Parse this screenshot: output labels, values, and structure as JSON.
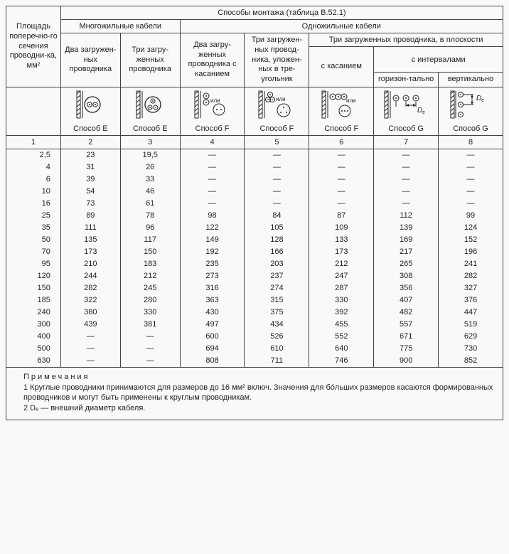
{
  "header": {
    "top": "Способы монтажа (таблица В.52.1)",
    "multi": "Многожильные кабели",
    "single": "Одножильные кабели",
    "sec_label": "Площадь поперечно-го сечения проводни-ка, мм²",
    "col2": "Два загружен-ных проводника",
    "col3": "Три загру-женных проводника",
    "col4": "Два загру-женных проводника с касанием",
    "col5": "Три загружен-ных провод-ника, уложен-ных в тре-угольник",
    "col678": "Три загруженных проводника, в плоскости",
    "col6": "с касанием",
    "col78": "с интервалами",
    "col7": "горизон-тально",
    "col8": "вертикально",
    "m2": "Способ Е",
    "m3": "Способ Е",
    "m4": "Способ F",
    "m5": "Способ F",
    "m6": "Способ F",
    "m7": "Способ G",
    "m8": "Способ G"
  },
  "colnums": [
    "1",
    "2",
    "3",
    "4",
    "5",
    "6",
    "7",
    "8"
  ],
  "rows": [
    [
      "2,5",
      "23",
      "19,5",
      "—",
      "—",
      "—",
      "—",
      "—"
    ],
    [
      "4",
      "31",
      "26",
      "—",
      "—",
      "—",
      "—",
      "—"
    ],
    [
      "6",
      "39",
      "33",
      "—",
      "—",
      "—",
      "—",
      "—"
    ],
    [
      "10",
      "54",
      "46",
      "—",
      "—",
      "—",
      "—",
      "—"
    ],
    [
      "16",
      "73",
      "61",
      "—",
      "—",
      "—",
      "—",
      "—"
    ],
    [
      "25",
      "89",
      "78",
      "98",
      "84",
      "87",
      "112",
      "99"
    ],
    [
      "35",
      "111",
      "96",
      "122",
      "105",
      "109",
      "139",
      "124"
    ],
    [
      "50",
      "135",
      "117",
      "149",
      "128",
      "133",
      "169",
      "152"
    ],
    [
      "70",
      "173",
      "150",
      "192",
      "166",
      "173",
      "217",
      "196"
    ],
    [
      "95",
      "210",
      "183",
      "235",
      "203",
      "212",
      "265",
      "241"
    ],
    [
      "120",
      "244",
      "212",
      "273",
      "237",
      "247",
      "308",
      "282"
    ],
    [
      "150",
      "282",
      "245",
      "316",
      "274",
      "287",
      "356",
      "327"
    ],
    [
      "185",
      "322",
      "280",
      "363",
      "315",
      "330",
      "407",
      "376"
    ],
    [
      "240",
      "380",
      "330",
      "430",
      "375",
      "392",
      "482",
      "447"
    ],
    [
      "300",
      "439",
      "381",
      "497",
      "434",
      "455",
      "557",
      "519"
    ],
    [
      "400",
      "—",
      "—",
      "600",
      "526",
      "552",
      "671",
      "629"
    ],
    [
      "500",
      "—",
      "—",
      "694",
      "610",
      "640",
      "775",
      "730"
    ],
    [
      "630",
      "—",
      "—",
      "808",
      "711",
      "746",
      "900",
      "852"
    ]
  ],
  "notes": {
    "title": "Примечания",
    "n1": "1 Круглые проводники принимаются для размеров до 16 мм² включ. Значения для бо́льших размеров касаются формированных проводников и могут быть применены к круглым проводникам.",
    "n2": "2 Dₑ — внешний диаметр кабеля."
  },
  "style": {
    "border_color": "#444",
    "bg": "#faf9f7",
    "font_size_base": 11,
    "dash": "—"
  }
}
